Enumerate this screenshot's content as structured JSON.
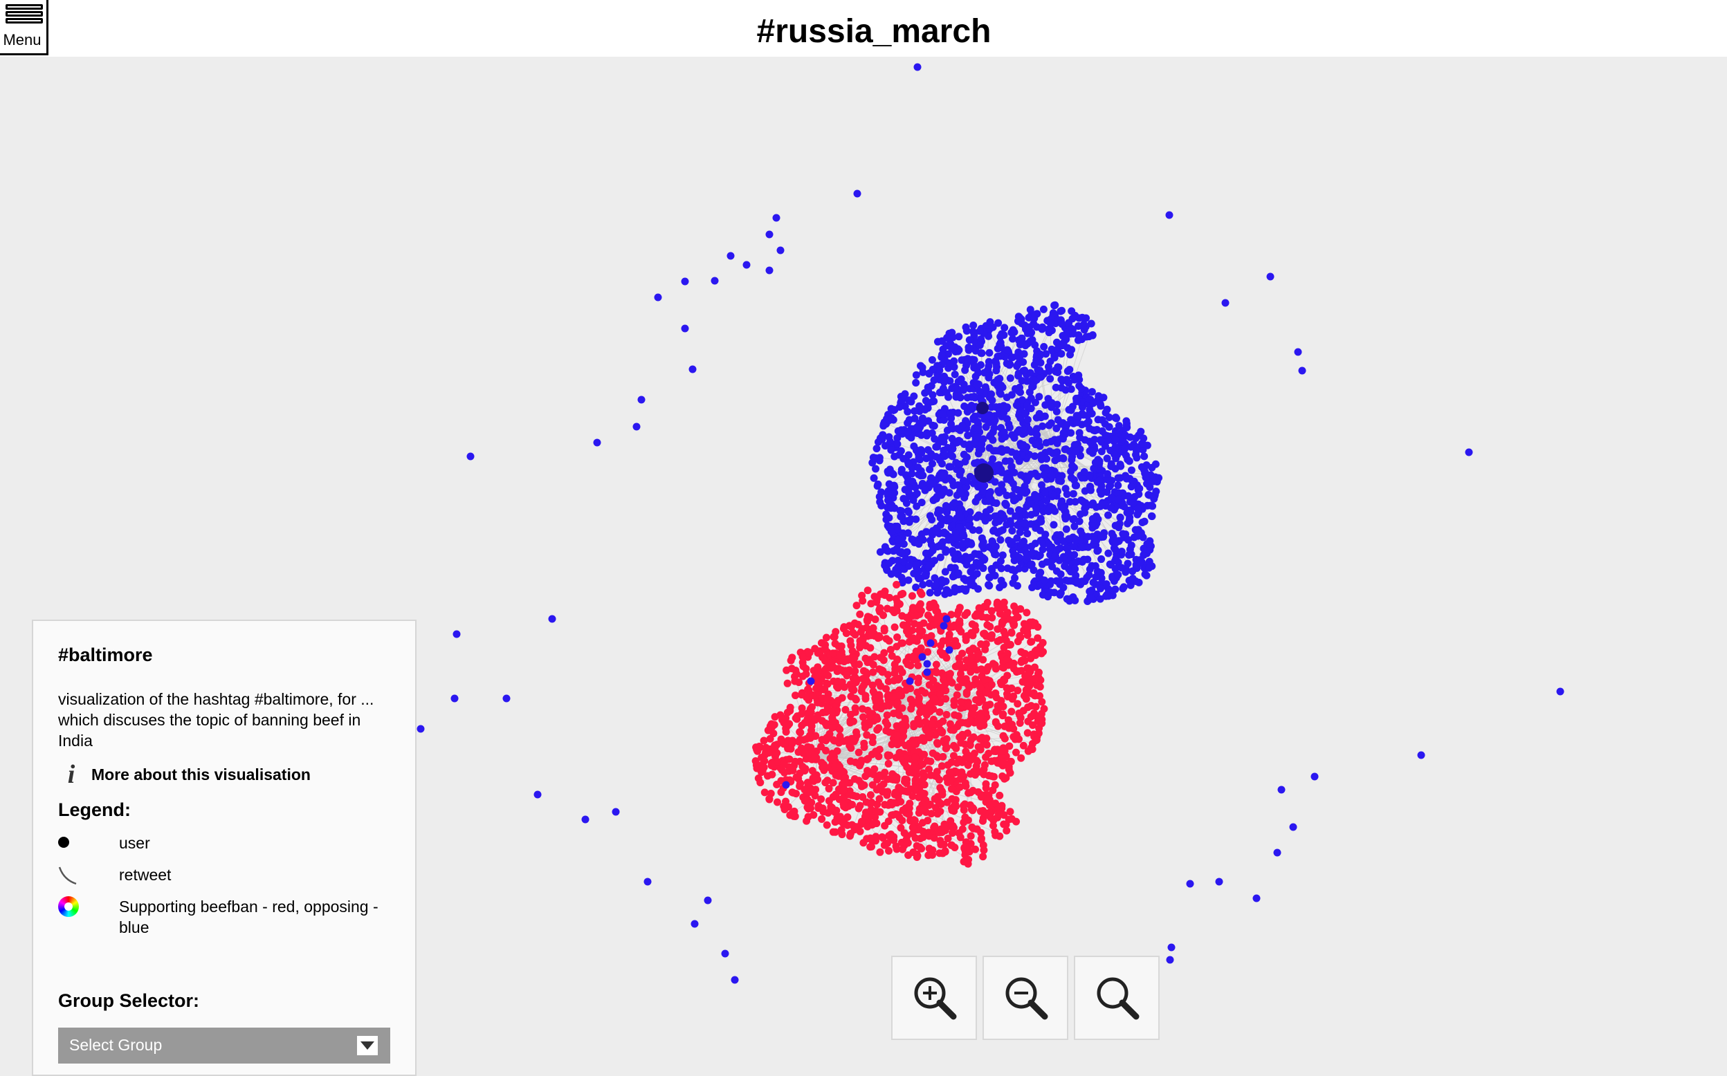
{
  "header": {
    "title": "#russia_march",
    "menu_label": "Menu"
  },
  "panel": {
    "title": "#baltimore",
    "description": "visualization of the hashtag #baltimore, for ... which discuses the topic of banning beef in India",
    "more_link": "More about this visualisation",
    "legend_heading": "Legend:",
    "legend": [
      {
        "icon": "dot-icon",
        "label": "user"
      },
      {
        "icon": "curve-icon",
        "label": "retweet"
      },
      {
        "icon": "color-wheel-icon",
        "label": "Supporting beefban - red, opposing - blue"
      }
    ],
    "group_heading": "Group Selector:",
    "group_select": {
      "selected": "Select Group"
    }
  },
  "zoom_controls": [
    {
      "name": "zoom-in",
      "icon": "zoom-in-icon"
    },
    {
      "name": "zoom-out",
      "icon": "zoom-out-icon"
    },
    {
      "name": "zoom-reset",
      "icon": "magnifier-icon"
    }
  ],
  "colors": {
    "supporting": "#ff1744",
    "opposing": "#2b17f0",
    "edge": "#c8c8c8",
    "background": "#ededed"
  }
}
